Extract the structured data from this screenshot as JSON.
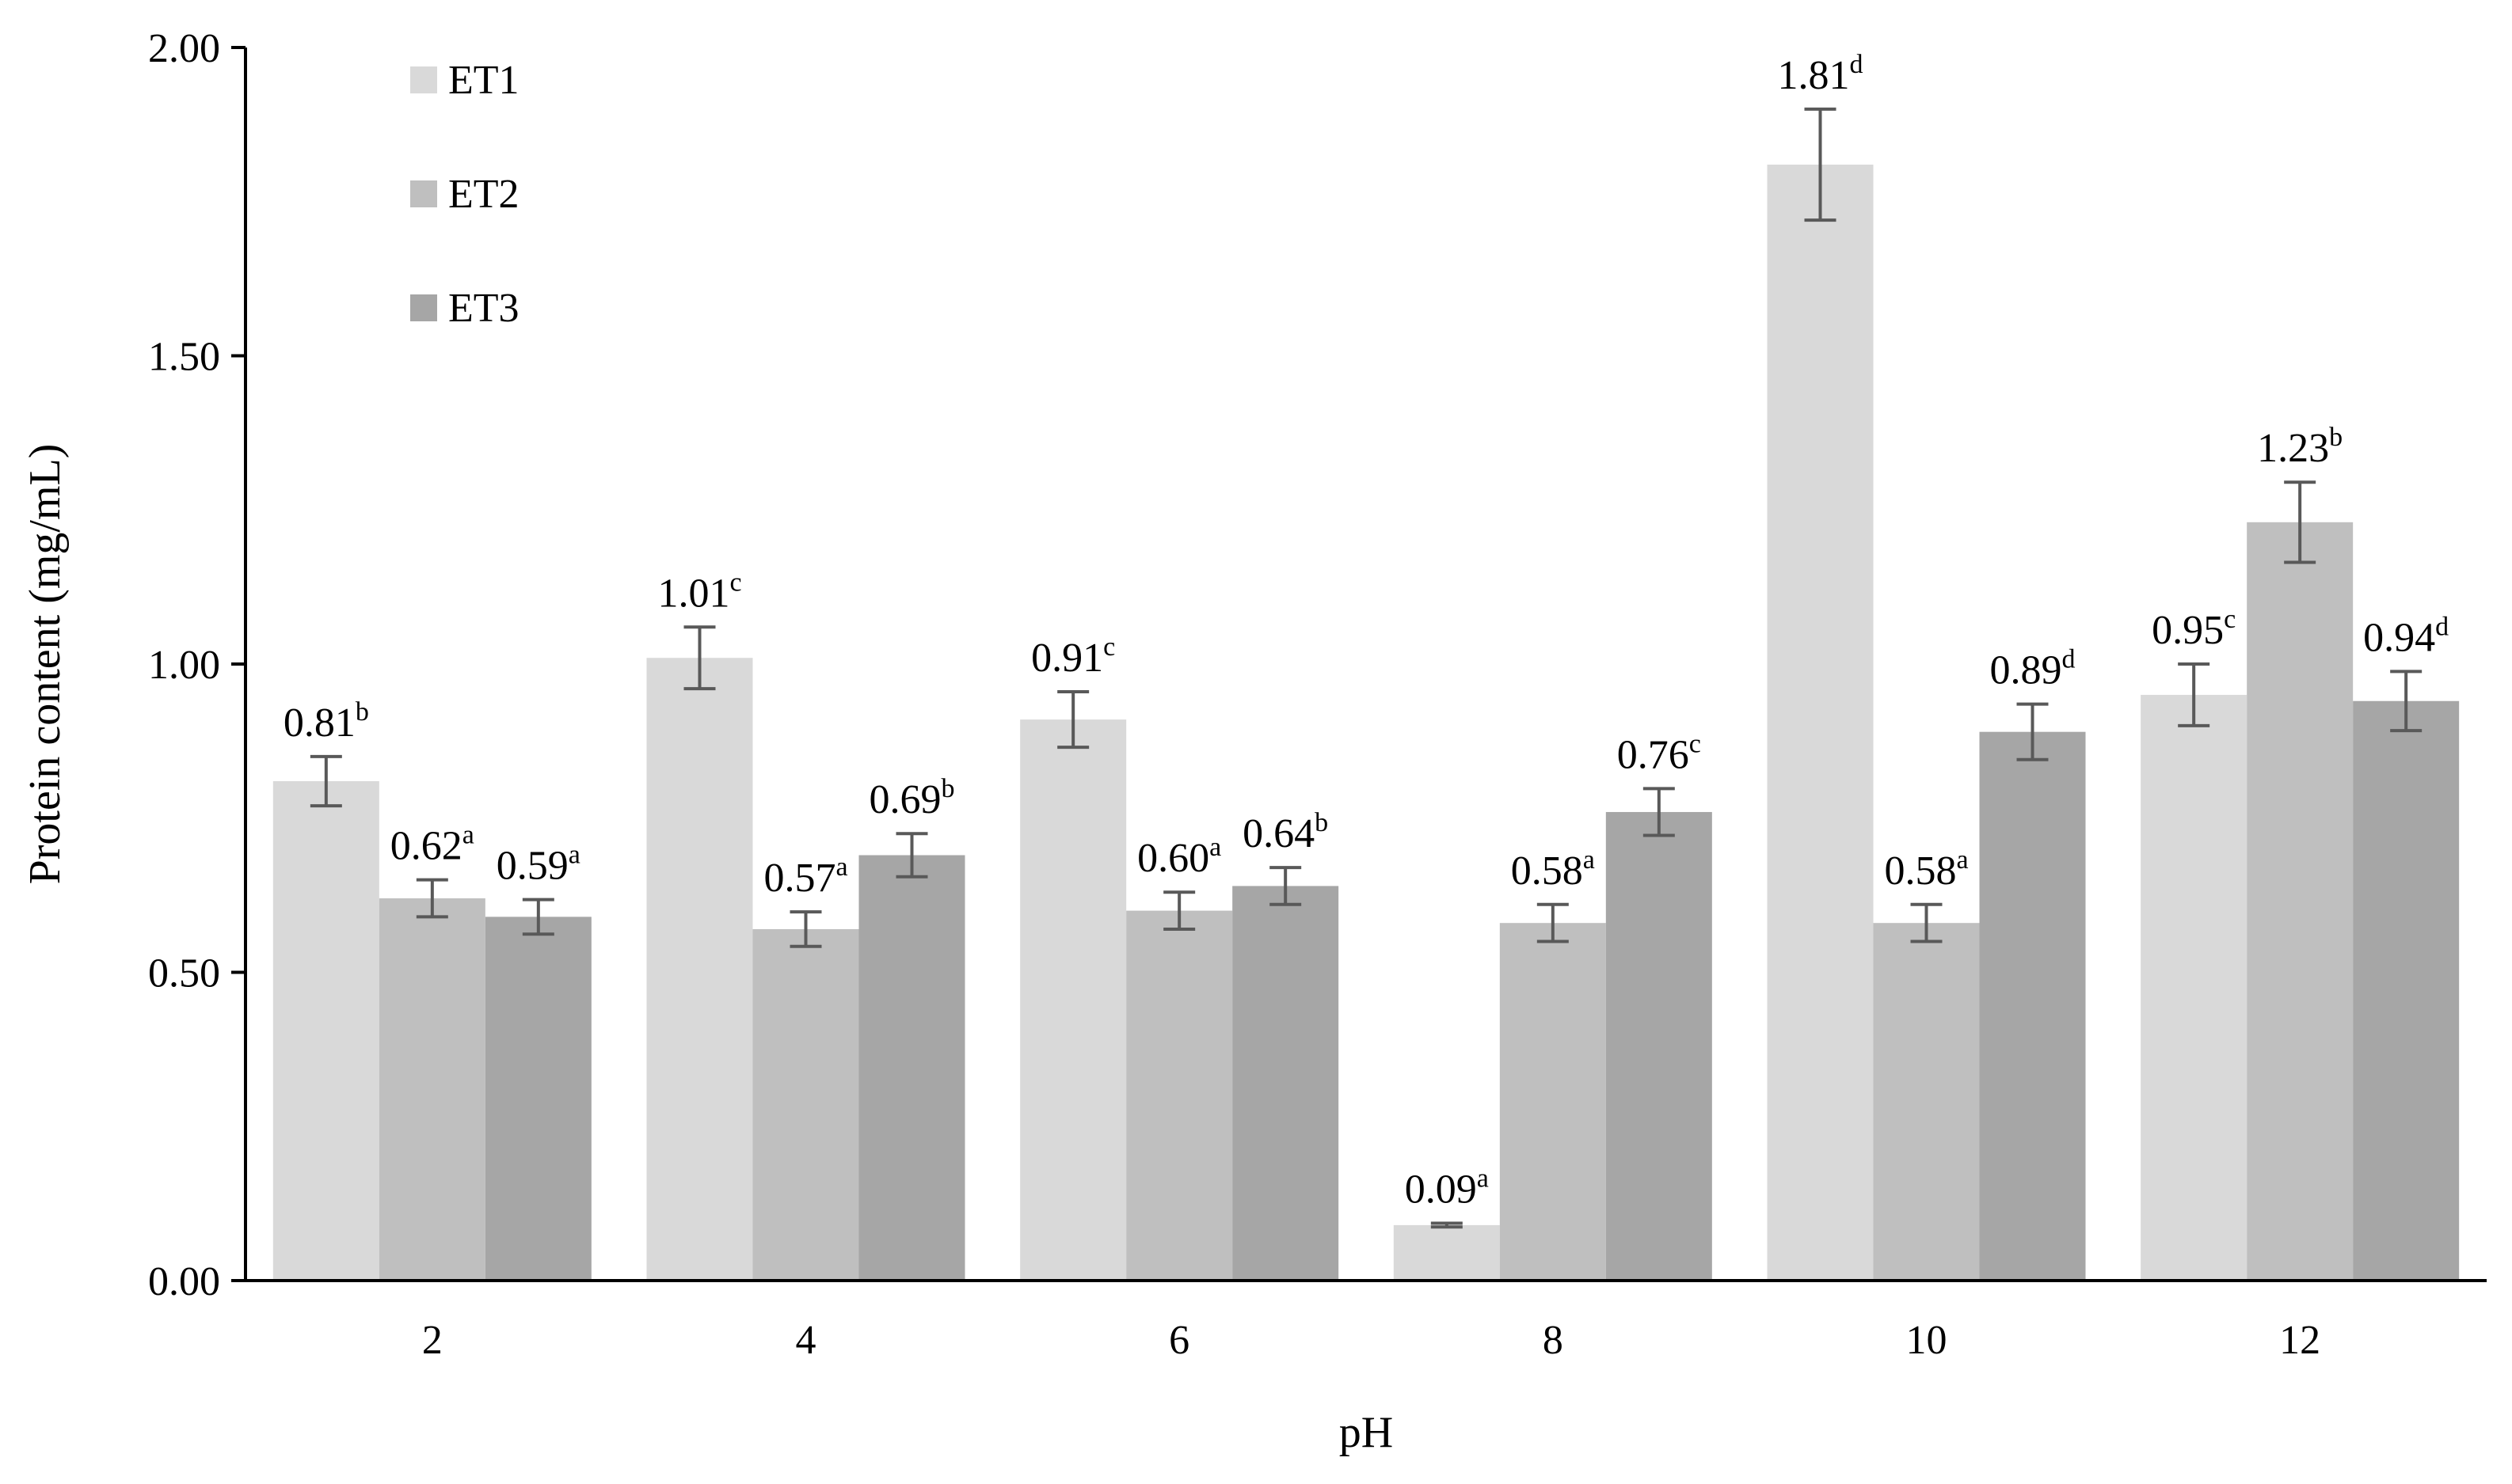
{
  "chart_data": {
    "type": "bar",
    "title": "",
    "xlabel": "pH",
    "ylabel": "Protein content (mg/mL)",
    "ylim": [
      0,
      2.0
    ],
    "yticks": [
      "0.00",
      "0.50",
      "1.00",
      "1.50",
      "2.00"
    ],
    "categories": [
      "2",
      "4",
      "6",
      "8",
      "10",
      "12"
    ],
    "grid": false,
    "legend_position": "top-left",
    "series": [
      {
        "name": "ET1",
        "color": "#d9d9d9",
        "values": [
          0.81,
          1.01,
          0.91,
          0.09,
          1.81,
          0.95
        ],
        "errors": [
          0.04,
          0.05,
          0.045,
          0.003,
          0.09,
          0.05
        ],
        "labels": [
          "0.81",
          "1.01",
          "0.91",
          "0.09",
          "1.81",
          "0.95"
        ],
        "letters": [
          "b",
          "c",
          "c",
          "a",
          "d",
          "c"
        ]
      },
      {
        "name": "ET2",
        "color": "#bfbfbf",
        "values": [
          0.62,
          0.57,
          0.6,
          0.58,
          0.58,
          1.23
        ],
        "errors": [
          0.03,
          0.028,
          0.03,
          0.03,
          0.03,
          0.065
        ],
        "labels": [
          "0.62",
          "0.57",
          "0.60",
          "0.58",
          "0.58",
          "1.23"
        ],
        "letters": [
          "a",
          "a",
          "a",
          "a",
          "a",
          "b"
        ]
      },
      {
        "name": "ET3",
        "color": "#a6a6a6",
        "values": [
          0.59,
          0.69,
          0.64,
          0.76,
          0.89,
          0.94
        ],
        "errors": [
          0.028,
          0.035,
          0.03,
          0.038,
          0.045,
          0.048
        ],
        "labels": [
          "0.59",
          "0.69",
          "0.64",
          "0.76",
          "0.89",
          "0.94"
        ],
        "letters": [
          "a",
          "b",
          "b",
          "c",
          "d",
          "d"
        ]
      }
    ]
  }
}
